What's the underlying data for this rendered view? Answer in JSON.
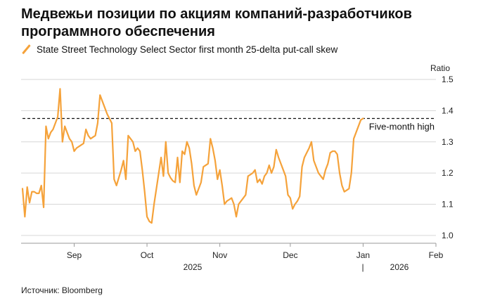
{
  "title": "Медвежьи позиции по акциям компаний-разработчиков программного обеспечения",
  "source": "Источник: Bloomberg",
  "chart_data": {
    "type": "line",
    "series": [
      {
        "name": "State Street Technology Select Sector first month 25-delta put-call skew",
        "color": "#f5a23a",
        "points": [
          [
            "2025-08-01",
            1.15
          ],
          [
            "2025-08-02",
            1.06
          ],
          [
            "2025-08-03",
            1.155
          ],
          [
            "2025-08-04",
            1.105
          ],
          [
            "2025-08-05",
            1.14
          ],
          [
            "2025-08-06",
            1.14
          ],
          [
            "2025-08-07",
            1.135
          ],
          [
            "2025-08-08",
            1.135
          ],
          [
            "2025-08-09",
            1.16
          ],
          [
            "2025-08-10",
            1.09
          ],
          [
            "2025-08-11",
            1.35
          ],
          [
            "2025-08-12",
            1.31
          ],
          [
            "2025-08-13",
            1.33
          ],
          [
            "2025-08-14",
            1.34
          ],
          [
            "2025-08-15",
            1.36
          ],
          [
            "2025-08-16",
            1.38
          ],
          [
            "2025-08-17",
            1.47
          ],
          [
            "2025-08-18",
            1.3
          ],
          [
            "2025-08-19",
            1.35
          ],
          [
            "2025-08-20",
            1.33
          ],
          [
            "2025-08-21",
            1.31
          ],
          [
            "2025-08-22",
            1.3
          ],
          [
            "2025-08-23",
            1.27
          ],
          [
            "2025-08-24",
            1.28
          ],
          [
            "2025-08-25",
            1.285
          ],
          [
            "2025-08-26",
            1.29
          ],
          [
            "2025-08-27",
            1.295
          ],
          [
            "2025-08-28",
            1.34
          ],
          [
            "2025-08-29",
            1.32
          ],
          [
            "2025-08-30",
            1.31
          ],
          [
            "2025-08-31",
            1.315
          ],
          [
            "2025-09-01",
            1.32
          ],
          [
            "2025-09-02",
            1.36
          ],
          [
            "2025-09-03",
            1.45
          ],
          [
            "2025-09-04",
            1.43
          ],
          [
            "2025-09-05",
            1.41
          ],
          [
            "2025-09-06",
            1.39
          ],
          [
            "2025-09-07",
            1.375
          ],
          [
            "2025-09-08",
            1.36
          ],
          [
            "2025-09-09",
            1.18
          ],
          [
            "2025-09-10",
            1.16
          ],
          [
            "2025-09-11",
            1.185
          ],
          [
            "2025-09-12",
            1.21
          ],
          [
            "2025-09-13",
            1.24
          ],
          [
            "2025-09-14",
            1.18
          ],
          [
            "2025-09-15",
            1.32
          ],
          [
            "2025-09-16",
            1.31
          ],
          [
            "2025-09-17",
            1.3
          ],
          [
            "2025-09-18",
            1.27
          ],
          [
            "2025-09-19",
            1.28
          ],
          [
            "2025-09-20",
            1.27
          ],
          [
            "2025-09-21",
            1.21
          ],
          [
            "2025-09-22",
            1.14
          ],
          [
            "2025-09-23",
            1.06
          ],
          [
            "2025-09-24",
            1.045
          ],
          [
            "2025-09-25",
            1.04
          ],
          [
            "2025-09-26",
            1.1
          ],
          [
            "2025-09-27",
            1.15
          ],
          [
            "2025-09-28",
            1.2
          ],
          [
            "2025-09-29",
            1.25
          ],
          [
            "2025-09-30",
            1.19
          ],
          [
            "2025-10-01",
            1.3
          ],
          [
            "2025-10-02",
            1.2
          ],
          [
            "2025-10-03",
            1.185
          ],
          [
            "2025-10-04",
            1.175
          ],
          [
            "2025-10-05",
            1.17
          ],
          [
            "2025-10-06",
            1.25
          ],
          [
            "2025-10-07",
            1.17
          ],
          [
            "2025-10-08",
            1.27
          ],
          [
            "2025-10-09",
            1.26
          ],
          [
            "2025-10-10",
            1.3
          ],
          [
            "2025-10-11",
            1.28
          ],
          [
            "2025-10-12",
            1.23
          ],
          [
            "2025-10-13",
            1.16
          ],
          [
            "2025-10-14",
            1.13
          ],
          [
            "2025-10-15",
            1.15
          ],
          [
            "2025-10-16",
            1.17
          ],
          [
            "2025-10-17",
            1.22
          ],
          [
            "2025-10-18",
            1.225
          ],
          [
            "2025-10-19",
            1.23
          ],
          [
            "2025-10-20",
            1.31
          ],
          [
            "2025-10-21",
            1.28
          ],
          [
            "2025-10-22",
            1.24
          ],
          [
            "2025-10-23",
            1.18
          ],
          [
            "2025-10-24",
            1.21
          ],
          [
            "2025-10-25",
            1.16
          ],
          [
            "2025-10-26",
            1.1
          ],
          [
            "2025-10-27",
            1.11
          ],
          [
            "2025-10-28",
            1.115
          ],
          [
            "2025-10-29",
            1.12
          ],
          [
            "2025-10-30",
            1.1
          ],
          [
            "2025-10-31",
            1.06
          ],
          [
            "2025-11-01",
            1.1
          ],
          [
            "2025-11-02",
            1.11
          ],
          [
            "2025-11-03",
            1.12
          ],
          [
            "2025-11-04",
            1.13
          ],
          [
            "2025-11-05",
            1.19
          ],
          [
            "2025-11-06",
            1.195
          ],
          [
            "2025-11-07",
            1.2
          ],
          [
            "2025-11-08",
            1.21
          ],
          [
            "2025-11-09",
            1.17
          ],
          [
            "2025-11-10",
            1.18
          ],
          [
            "2025-11-11",
            1.165
          ],
          [
            "2025-11-12",
            1.19
          ],
          [
            "2025-11-13",
            1.2
          ],
          [
            "2025-11-14",
            1.225
          ],
          [
            "2025-11-15",
            1.2
          ],
          [
            "2025-11-16",
            1.22
          ],
          [
            "2025-11-17",
            1.275
          ],
          [
            "2025-11-18",
            1.25
          ],
          [
            "2025-11-19",
            1.23
          ],
          [
            "2025-11-20",
            1.21
          ],
          [
            "2025-11-21",
            1.19
          ],
          [
            "2025-11-22",
            1.13
          ],
          [
            "2025-11-23",
            1.12
          ],
          [
            "2025-11-24",
            1.085
          ],
          [
            "2025-11-25",
            1.1
          ],
          [
            "2025-11-26",
            1.11
          ],
          [
            "2025-11-27",
            1.125
          ],
          [
            "2025-11-28",
            1.22
          ],
          [
            "2025-11-29",
            1.25
          ],
          [
            "2025-11-30",
            1.265
          ],
          [
            "2025-12-01",
            1.28
          ],
          [
            "2025-12-02",
            1.3
          ],
          [
            "2025-12-03",
            1.24
          ],
          [
            "2025-12-04",
            1.22
          ],
          [
            "2025-12-05",
            1.2
          ],
          [
            "2025-12-06",
            1.19
          ],
          [
            "2025-12-07",
            1.18
          ],
          [
            "2025-12-08",
            1.21
          ],
          [
            "2025-12-09",
            1.23
          ],
          [
            "2025-12-10",
            1.265
          ],
          [
            "2025-12-11",
            1.27
          ],
          [
            "2025-12-12",
            1.27
          ],
          [
            "2025-12-13",
            1.26
          ],
          [
            "2025-12-14",
            1.2
          ],
          [
            "2025-12-15",
            1.16
          ],
          [
            "2025-12-16",
            1.14
          ],
          [
            "2025-12-17",
            1.145
          ],
          [
            "2025-12-18",
            1.15
          ],
          [
            "2025-12-19",
            1.2
          ],
          [
            "2025-12-20",
            1.31
          ],
          [
            "2025-12-21",
            1.33
          ],
          [
            "2025-12-22",
            1.35
          ],
          [
            "2025-12-23",
            1.37
          ],
          [
            "2025-12-24",
            1.375
          ]
        ]
      }
    ],
    "reference_line": {
      "label": "Five-month high",
      "value": 1.375,
      "style": "dashed"
    },
    "y_axis": {
      "label": "Ratio",
      "ticks": [
        "1.5",
        "1.4",
        "1.3",
        "1.2",
        "1.1",
        "1.0"
      ],
      "ylim": [
        0.975,
        1.5
      ],
      "side": "right"
    },
    "x_axis": {
      "ticks": [
        {
          "label": "Sep",
          "date": "2025-08-23"
        },
        {
          "label": "Oct",
          "date": "2025-09-23"
        },
        {
          "label": "Nov",
          "date": "2025-10-24"
        },
        {
          "label": "Dec",
          "date": "2025-11-23"
        },
        {
          "label": "Jan",
          "date": "2025-12-24"
        },
        {
          "label": "Feb",
          "date": "2026-01-24"
        }
      ],
      "years": [
        {
          "label": "2025"
        },
        {
          "label": "2026"
        }
      ],
      "year_separator": "|"
    },
    "grid": true,
    "legend": "top-left"
  }
}
